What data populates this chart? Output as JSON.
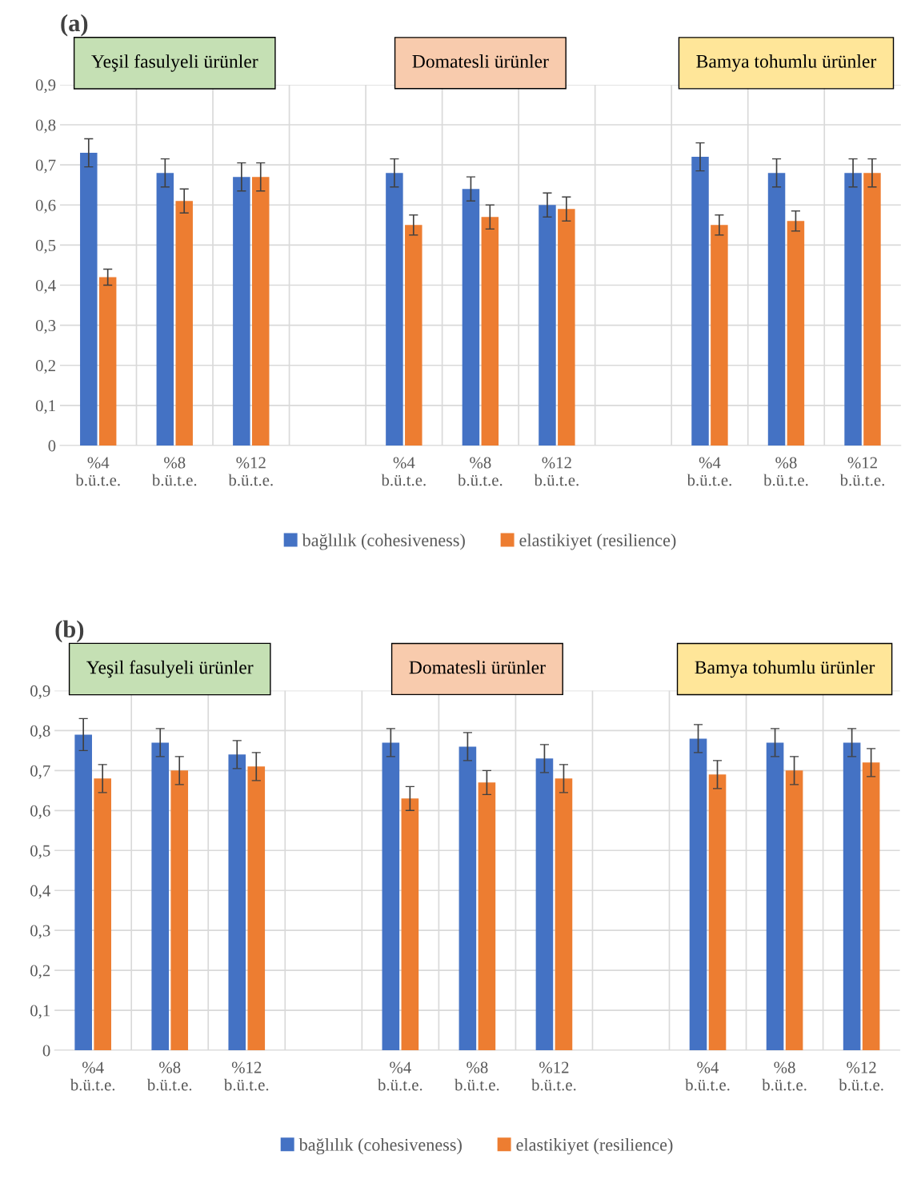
{
  "chart_data": [
    {
      "type": "bar",
      "title": "(a)",
      "categories": [
        "%4\nb.ü.t.e.",
        "%8\nb.ü.t.e.",
        "%12\nb.ü.t.e.",
        null,
        "%4\nb.ü.t.e.",
        "%8\nb.ü.t.e.",
        "%12\nb.ü.t.e.",
        null,
        "%4\nb.ü.t.e.",
        "%8\nb.ü.t.e.",
        "%12\nb.ü.t.e."
      ],
      "series": [
        {
          "name": "bağlılık (cohesiveness)",
          "color": "#4472c4",
          "values": [
            0.73,
            0.68,
            0.67,
            null,
            0.68,
            0.64,
            0.6,
            null,
            0.72,
            0.68,
            0.68
          ],
          "errors": [
            0.035,
            0.035,
            0.035,
            null,
            0.035,
            0.03,
            0.03,
            null,
            0.035,
            0.035,
            0.035
          ]
        },
        {
          "name": "elastikiyet (resilience)",
          "color": "#ed7d31",
          "values": [
            0.42,
            0.61,
            0.67,
            null,
            0.55,
            0.57,
            0.59,
            null,
            0.55,
            0.56,
            0.68
          ],
          "errors": [
            0.02,
            0.03,
            0.035,
            null,
            0.025,
            0.03,
            0.03,
            null,
            0.025,
            0.025,
            0.035
          ]
        }
      ],
      "annotations": [
        "Yeşil fasulyeli ürünler",
        "Domatesli ürünler",
        "Bamya tohumlu ürünler"
      ],
      "ylim": [
        0,
        0.9
      ],
      "yticks": [
        0,
        {
          "value": 0.1,
          "label": "0,1"
        },
        {
          "value": 0.2,
          "label": "0,2"
        },
        {
          "value": 0.3,
          "label": "0,3"
        },
        {
          "value": 0.4,
          "label": "0,4"
        },
        {
          "value": 0.5,
          "label": "0,5"
        },
        {
          "value": 0.6,
          "label": "0,6"
        },
        {
          "value": 0.7,
          "label": "0,7"
        },
        {
          "value": 0.8,
          "label": "0,8"
        },
        {
          "value": 0.9,
          "label": "0,9"
        }
      ],
      "grid": true,
      "legend": "bottom"
    },
    {
      "type": "bar",
      "title": "(b)",
      "categories": [
        "%4\nb.ü.t.e.",
        "%8\nb.ü.t.e.",
        "%12\nb.ü.t.e.",
        null,
        "%4\nb.ü.t.e.",
        "%8\nb.ü.t.e.",
        "%12\nb.ü.t.e.",
        null,
        "%4\nb.ü.t.e.",
        "%8\nb.ü.t.e.",
        "%12\nb.ü.t.e."
      ],
      "series": [
        {
          "name": "bağlılık (cohesiveness)",
          "color": "#4472c4",
          "values": [
            0.79,
            0.77,
            0.74,
            null,
            0.77,
            0.76,
            0.73,
            null,
            0.78,
            0.77,
            0.77
          ],
          "errors": [
            0.04,
            0.035,
            0.035,
            null,
            0.035,
            0.035,
            0.035,
            null,
            0.035,
            0.035,
            0.035
          ]
        },
        {
          "name": "elastikiyet (resilience)",
          "color": "#ed7d31",
          "values": [
            0.68,
            0.7,
            0.71,
            null,
            0.63,
            0.67,
            0.68,
            null,
            0.69,
            0.7,
            0.72
          ],
          "errors": [
            0.035,
            0.035,
            0.035,
            null,
            0.03,
            0.03,
            0.035,
            null,
            0.035,
            0.035,
            0.035
          ]
        }
      ],
      "annotations": [
        "Yeşil fasulyeli ürünler",
        "Domatesli ürünler",
        "Bamya tohumlu ürünler"
      ],
      "ylim": [
        0,
        0.9
      ],
      "yticks": [
        0,
        {
          "value": 0.1,
          "label": "0,1"
        },
        {
          "value": 0.2,
          "label": "0,2"
        },
        {
          "value": 0.3,
          "label": "0,3"
        },
        {
          "value": 0.4,
          "label": "0,4"
        },
        {
          "value": 0.5,
          "label": "0,5"
        },
        {
          "value": 0.6,
          "label": "0,6"
        },
        {
          "value": 0.7,
          "label": "0,7"
        },
        {
          "value": 0.8,
          "label": "0,8"
        },
        {
          "value": 0.9,
          "label": "0,9"
        }
      ],
      "grid": true,
      "legend": "bottom"
    }
  ]
}
